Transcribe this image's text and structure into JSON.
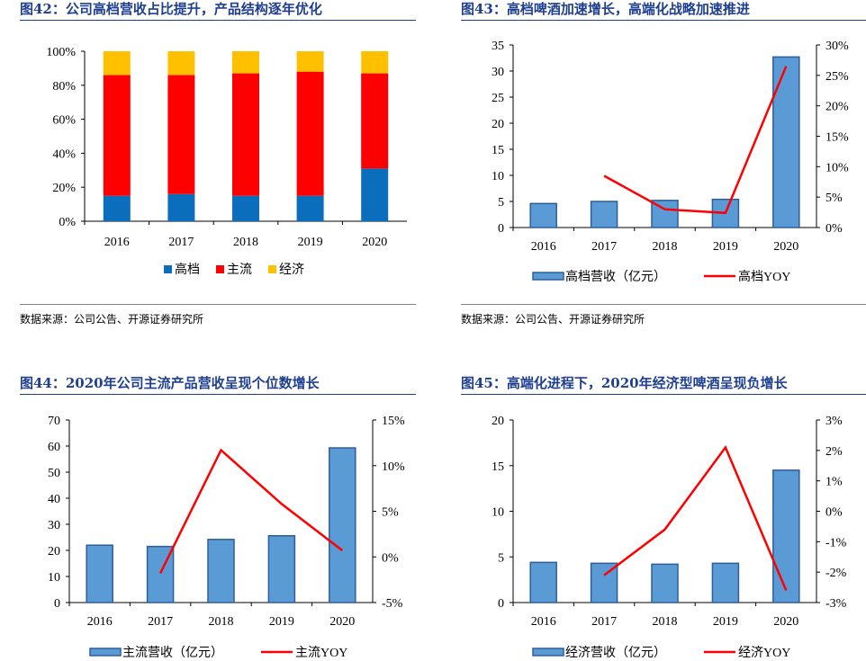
{
  "colors": {
    "title": "#1f3f8f",
    "high": "#0b6ebd",
    "main": "#ff0000",
    "econ": "#ffc000",
    "bar_fill": "#5b9bd5",
    "bar_stroke": "#2e5e9a",
    "yoy_line": "#ff0000"
  },
  "panels": [
    {
      "title": "图42：公司高档营收占比提升，产品结构逐年优化",
      "source": "数据来源：公司公告、开源证券研究所"
    },
    {
      "title": "图43：高档啤酒加速增长，高端化战略加速推进",
      "source": "数据来源：公司公告、开源证券研究所"
    },
    {
      "title": "图44：2020年公司主流产品营收呈现个位数增长"
    },
    {
      "title": "图45：高端化进程下，2020年经济型啤酒呈现负增长"
    }
  ],
  "chart_data": [
    {
      "type": "bar",
      "stacked": true,
      "percent": true,
      "categories": [
        "2016",
        "2017",
        "2018",
        "2019",
        "2020"
      ],
      "series": [
        {
          "name": "高档",
          "values": [
            15,
            16,
            15,
            15,
            31
          ]
        },
        {
          "name": "主流",
          "values": [
            71,
            70,
            72,
            73,
            56
          ]
        },
        {
          "name": "经济",
          "values": [
            14,
            14,
            13,
            12,
            13
          ]
        }
      ],
      "ylim": [
        0,
        100
      ],
      "yticks": [
        "0%",
        "20%",
        "40%",
        "60%",
        "80%",
        "100%"
      ],
      "legend": "bottom"
    },
    {
      "type": "bar",
      "categories": [
        "2016",
        "2017",
        "2018",
        "2019",
        "2020"
      ],
      "series": [
        {
          "name": "高档营收（亿元）",
          "kind": "bar",
          "axis": "left",
          "values": [
            4.6,
            5.0,
            5.2,
            5.4,
            32.7
          ]
        },
        {
          "name": "高档YOY",
          "kind": "line",
          "axis": "right",
          "values": [
            null,
            8.5,
            3.0,
            2.4,
            26.5
          ]
        }
      ],
      "ylim": [
        0,
        35
      ],
      "yticks": [
        "0",
        "5",
        "10",
        "15",
        "20",
        "25",
        "30",
        "35"
      ],
      "y2lim": [
        0,
        30
      ],
      "y2ticks": [
        "0%",
        "5%",
        "10%",
        "15%",
        "20%",
        "25%",
        "30%"
      ],
      "legend": "bottom"
    },
    {
      "type": "bar",
      "categories": [
        "2016",
        "2017",
        "2018",
        "2019",
        "2020"
      ],
      "series": [
        {
          "name": "主流营收（亿元）",
          "kind": "bar",
          "axis": "left",
          "values": [
            22.0,
            21.5,
            24.2,
            25.6,
            59.3
          ]
        },
        {
          "name": "主流YOY",
          "kind": "line",
          "axis": "right",
          "values": [
            null,
            -1.8,
            11.7,
            5.8,
            0.7
          ]
        }
      ],
      "ylim": [
        0,
        70
      ],
      "yticks": [
        "0",
        "10",
        "20",
        "30",
        "40",
        "50",
        "60",
        "70"
      ],
      "y2lim": [
        -5,
        15
      ],
      "y2ticks": [
        "-5%",
        "0%",
        "5%",
        "10%",
        "15%"
      ],
      "legend": "bottom"
    },
    {
      "type": "bar",
      "categories": [
        "2016",
        "2017",
        "2018",
        "2019",
        "2020"
      ],
      "series": [
        {
          "name": "经济营收（亿元）",
          "kind": "bar",
          "axis": "left",
          "values": [
            4.4,
            4.3,
            4.2,
            4.3,
            14.5
          ]
        },
        {
          "name": "经济YOY",
          "kind": "line",
          "axis": "right",
          "values": [
            null,
            -2.1,
            -0.6,
            2.1,
            -2.6
          ]
        }
      ],
      "ylim": [
        0,
        20
      ],
      "yticks": [
        "0",
        "5",
        "10",
        "15",
        "20"
      ],
      "y2lim": [
        -3,
        3
      ],
      "y2ticks": [
        "-3%",
        "-2%",
        "-1%",
        "0%",
        "1%",
        "2%",
        "3%"
      ],
      "legend": "bottom"
    }
  ]
}
